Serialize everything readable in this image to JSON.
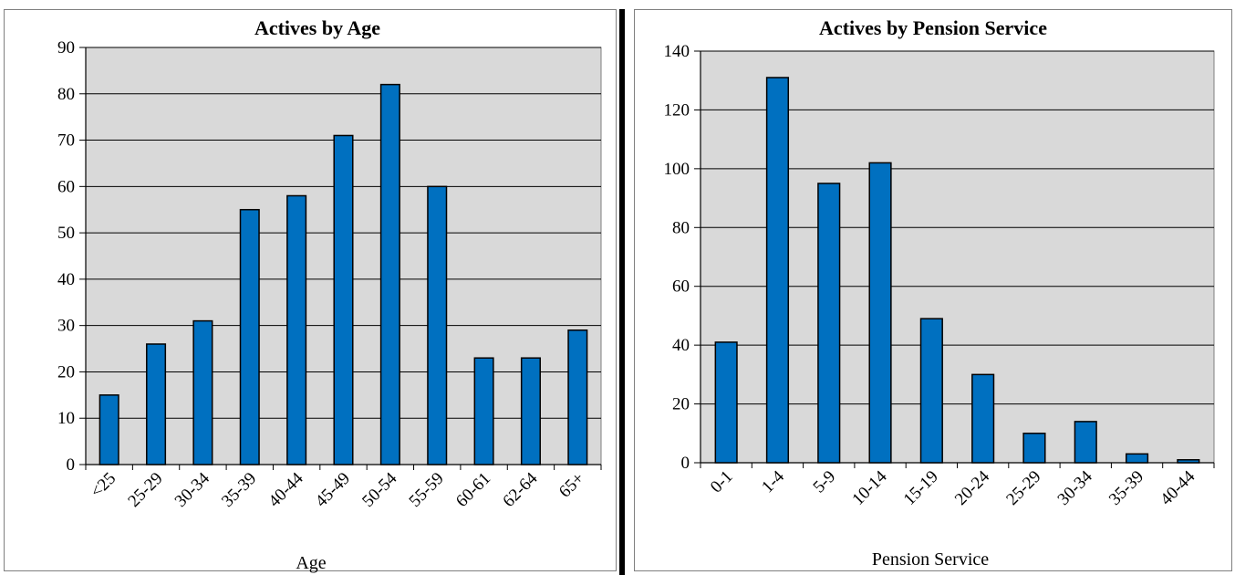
{
  "colors": {
    "plot_bg": "#d9d9d9",
    "bar": "#0070c0",
    "bar_stroke": "#000000",
    "grid": "#000000"
  },
  "chart_data": [
    {
      "type": "bar",
      "title": "Actives by Age",
      "xlabel": "Age",
      "ylabel": "",
      "categories": [
        "<25",
        "25-29",
        "30-34",
        "35-39",
        "40-44",
        "45-49",
        "50-54",
        "55-59",
        "60-61",
        "62-64",
        "65+"
      ],
      "values": [
        15,
        26,
        31,
        55,
        58,
        71,
        82,
        60,
        23,
        23,
        29
      ],
      "ylim": [
        0,
        90
      ],
      "yticks": [
        0,
        10,
        20,
        30,
        40,
        50,
        60,
        70,
        80,
        90
      ],
      "grid": true,
      "legend": "none"
    },
    {
      "type": "bar",
      "title": "Actives by Pension Service",
      "xlabel": "Pension Service",
      "ylabel": "",
      "categories": [
        "0-1",
        "1-4",
        "5-9",
        "10-14",
        "15-19",
        "20-24",
        "25-29",
        "30-34",
        "35-39",
        "40-44"
      ],
      "values": [
        41,
        131,
        95,
        102,
        49,
        30,
        10,
        14,
        3,
        1
      ],
      "ylim": [
        0,
        140
      ],
      "yticks": [
        0,
        20,
        40,
        60,
        80,
        100,
        120,
        140
      ],
      "grid": true,
      "legend": "none"
    }
  ]
}
